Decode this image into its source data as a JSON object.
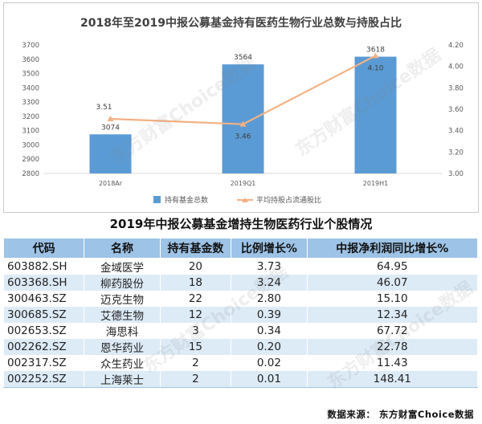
{
  "chart_data": {
    "type": "bar",
    "title": "2018年至2019中报公募基金持有医药生物行业总数与持股占比",
    "categories": [
      "2018Ar",
      "2019Q1",
      "2019H1"
    ],
    "series": [
      {
        "name": "持有基金总数",
        "type": "bar",
        "axis": "left",
        "color": "#5b9bd5",
        "values": [
          3074,
          3564,
          3618
        ]
      },
      {
        "name": "平均持股占流通股比",
        "type": "line",
        "axis": "right",
        "color": "#f4b183",
        "values": [
          3.51,
          3.46,
          4.1
        ]
      }
    ],
    "ylim_left": [
      2800,
      3700
    ],
    "yticks_left": [
      "2800",
      "2900",
      "3000",
      "3100",
      "3200",
      "3300",
      "3400",
      "3500",
      "3600",
      "3700"
    ],
    "ylim_right": [
      3.0,
      4.2
    ],
    "yticks_right": [
      "3.00",
      "3.20",
      "3.40",
      "3.60",
      "3.80",
      "4.00",
      "4.20"
    ],
    "bar_labels": [
      "3074",
      "3564",
      "3618"
    ],
    "line_labels": [
      "3.51",
      "3.46",
      "4.10"
    ],
    "legend_position": "bottom",
    "grid": false
  },
  "table": {
    "title": "2019年中报公募基金增持生物医药行业个股情况",
    "headers": [
      "代码",
      "名称",
      "持有基金数",
      "比例增长%",
      "中报净利润同比增长%"
    ],
    "rows": [
      [
        "603882.SH",
        "金域医学",
        "20",
        "3.73",
        "64.95"
      ],
      [
        "603368.SH",
        "柳药股份",
        "18",
        "3.24",
        "46.07"
      ],
      [
        "300463.SZ",
        "迈克生物",
        "22",
        "2.80",
        "15.10"
      ],
      [
        "300685.SZ",
        "艾德生物",
        "12",
        "0.39",
        "12.34"
      ],
      [
        "002653.SZ",
        "海思科",
        "3",
        "0.34",
        "67.72"
      ],
      [
        "002262.SZ",
        "恩华药业",
        "15",
        "0.20",
        "22.78"
      ],
      [
        "002317.SZ",
        "众生药业",
        "2",
        "0.02",
        "11.43"
      ],
      [
        "002252.SZ",
        "上海莱士",
        "2",
        "0.01",
        "148.41"
      ]
    ]
  },
  "source": "数据来源： 东方财富Choice数据",
  "watermark": "东方财富Choice数据"
}
